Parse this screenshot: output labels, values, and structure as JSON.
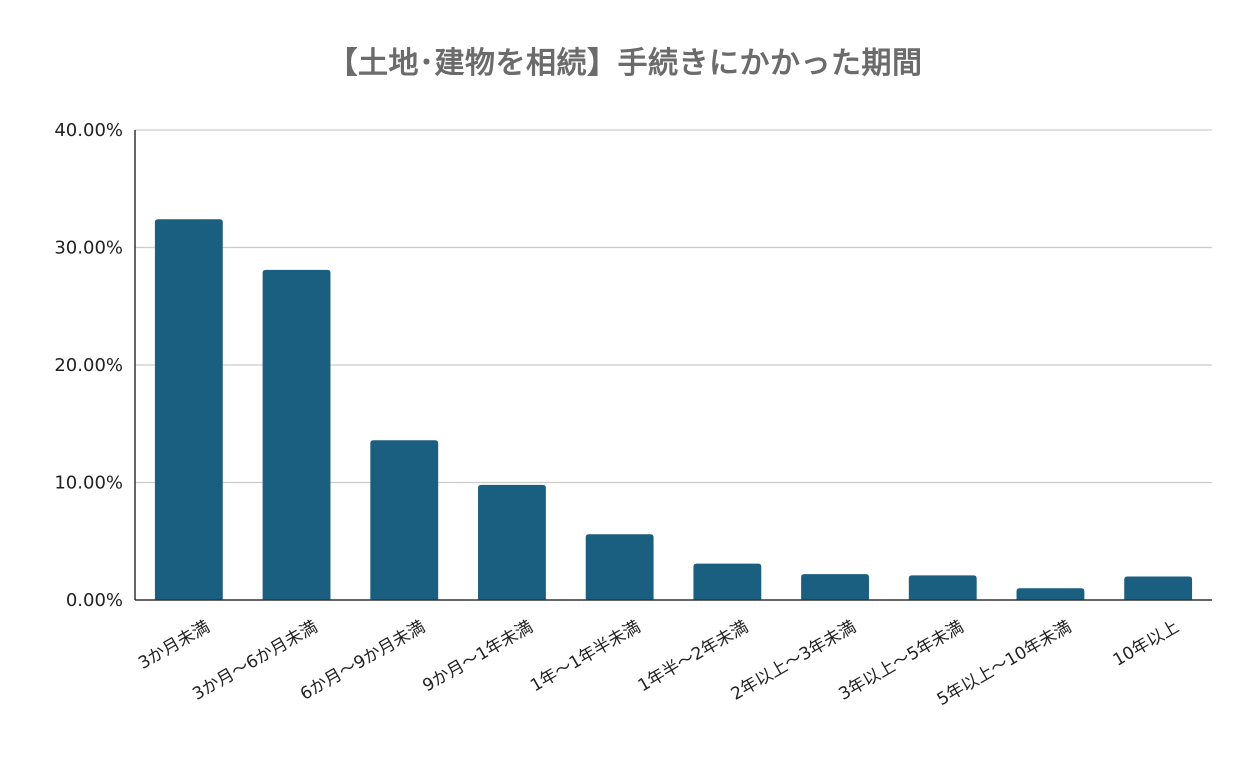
{
  "chart_data": {
    "type": "bar",
    "title": "【土地･建物を相続】手続きにかかった期間",
    "xlabel": "",
    "ylabel": "",
    "categories": [
      "3か月未満",
      "3か月～6か月未満",
      "6か月～9か月未満",
      "9か月～1年未満",
      "1年～1年半未満",
      "1年半～2年未満",
      "2年以上～3年未満",
      "3年以上～5年未満",
      "5年以上～10年未満",
      "10年以上"
    ],
    "values": [
      32.4,
      28.1,
      13.6,
      9.8,
      5.6,
      3.1,
      2.2,
      2.1,
      1.0,
      2.0
    ],
    "ylim": [
      0,
      40
    ],
    "yticks": [
      0,
      10,
      20,
      30,
      40
    ],
    "ytick_labels": [
      "0.00%",
      "10.00%",
      "20.00%",
      "30.00%",
      "40.00%"
    ],
    "grid": true,
    "legend": "none",
    "bar_color": "#1a5f7f",
    "grid_color": "#cccccc",
    "axis_color": "#333333"
  }
}
